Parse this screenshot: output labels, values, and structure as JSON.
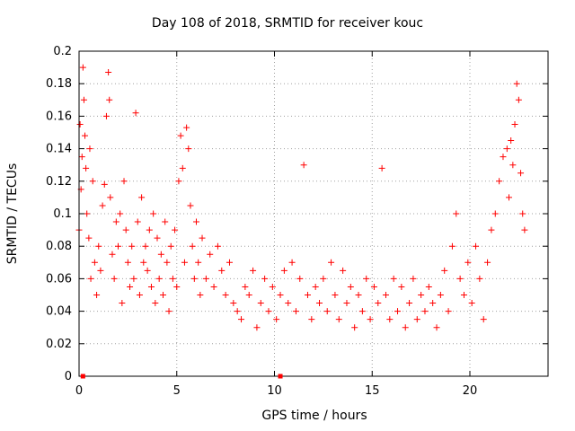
{
  "chart_data": {
    "type": "scatter",
    "title": "Day 108 of 2018, SRMTID for receiver kouc",
    "xlabel": "GPS time / hours",
    "ylabel": "SRMTID / TECUs",
    "xlim": [
      0,
      24
    ],
    "ylim": [
      0,
      0.2
    ],
    "xticks": [
      0,
      5,
      10,
      15,
      20
    ],
    "xtick_labels": [
      "0",
      "5",
      "10",
      "15",
      "20"
    ],
    "yticks": [
      0,
      0.02,
      0.04,
      0.06,
      0.08,
      0.1,
      0.12,
      0.14,
      0.16,
      0.18,
      0.2
    ],
    "ytick_labels": [
      "0",
      "0.02",
      "0.04",
      "0.06",
      "0.08",
      "0.1",
      "0.12",
      "0.14",
      "0.16",
      "0.18",
      "0.2"
    ],
    "grid": true,
    "marker": "plus",
    "color": "#ff0000",
    "series": [
      {
        "name": "SRMTID",
        "x": [
          0.0,
          0.05,
          0.1,
          0.15,
          0.2,
          0.25,
          0.3,
          0.35,
          0.4,
          0.5,
          0.55,
          0.6,
          0.7,
          0.8,
          0.9,
          1.0,
          1.1,
          1.2,
          1.3,
          1.4,
          1.5,
          1.55,
          1.6,
          1.7,
          1.8,
          1.9,
          2.0,
          2.1,
          2.2,
          2.3,
          2.4,
          2.5,
          2.6,
          2.7,
          2.8,
          2.9,
          3.0,
          3.1,
          3.2,
          3.3,
          3.4,
          3.5,
          3.6,
          3.7,
          3.8,
          3.9,
          4.0,
          4.1,
          4.2,
          4.3,
          4.4,
          4.5,
          4.6,
          4.7,
          4.8,
          4.9,
          5.0,
          5.1,
          5.2,
          5.3,
          5.4,
          5.5,
          5.6,
          5.7,
          5.8,
          5.9,
          6.0,
          6.1,
          6.2,
          6.3,
          6.5,
          6.7,
          6.9,
          7.1,
          7.3,
          7.5,
          7.7,
          7.9,
          8.1,
          8.3,
          8.5,
          8.7,
          8.9,
          9.1,
          9.3,
          9.5,
          9.7,
          9.9,
          10.1,
          10.3,
          10.5,
          10.7,
          10.9,
          11.1,
          11.3,
          11.5,
          11.7,
          11.9,
          12.1,
          12.3,
          12.5,
          12.7,
          12.9,
          13.1,
          13.3,
          13.5,
          13.7,
          13.9,
          14.1,
          14.3,
          14.5,
          14.7,
          14.9,
          15.1,
          15.3,
          15.5,
          15.7,
          15.9,
          16.1,
          16.3,
          16.5,
          16.7,
          16.9,
          17.1,
          17.3,
          17.5,
          17.7,
          17.9,
          18.1,
          18.3,
          18.5,
          18.7,
          18.9,
          19.1,
          19.3,
          19.5,
          19.7,
          19.9,
          20.1,
          20.3,
          20.5,
          20.7,
          20.9,
          21.1,
          21.3,
          21.5,
          21.7,
          21.9,
          22.0,
          22.1,
          22.2,
          22.3,
          22.4,
          22.5,
          22.6,
          22.7,
          22.8
        ],
        "y": [
          0.09,
          0.155,
          0.115,
          0.135,
          0.19,
          0.17,
          0.148,
          0.128,
          0.1,
          0.085,
          0.14,
          0.06,
          0.12,
          0.07,
          0.05,
          0.08,
          0.065,
          0.105,
          0.118,
          0.16,
          0.187,
          0.17,
          0.11,
          0.075,
          0.06,
          0.095,
          0.08,
          0.1,
          0.045,
          0.12,
          0.09,
          0.07,
          0.055,
          0.08,
          0.06,
          0.162,
          0.095,
          0.05,
          0.11,
          0.07,
          0.08,
          0.065,
          0.09,
          0.055,
          0.1,
          0.045,
          0.085,
          0.06,
          0.075,
          0.05,
          0.095,
          0.07,
          0.04,
          0.08,
          0.06,
          0.09,
          0.055,
          0.12,
          0.148,
          0.128,
          0.07,
          0.153,
          0.14,
          0.105,
          0.08,
          0.06,
          0.095,
          0.07,
          0.05,
          0.085,
          0.06,
          0.075,
          0.055,
          0.08,
          0.065,
          0.05,
          0.07,
          0.045,
          0.04,
          0.035,
          0.055,
          0.05,
          0.065,
          0.03,
          0.045,
          0.06,
          0.04,
          0.055,
          0.035,
          0.05,
          0.065,
          0.045,
          0.07,
          0.04,
          0.06,
          0.13,
          0.05,
          0.035,
          0.055,
          0.045,
          0.06,
          0.04,
          0.07,
          0.05,
          0.035,
          0.065,
          0.045,
          0.055,
          0.03,
          0.05,
          0.04,
          0.06,
          0.035,
          0.055,
          0.045,
          0.128,
          0.05,
          0.035,
          0.06,
          0.04,
          0.055,
          0.03,
          0.045,
          0.06,
          0.035,
          0.05,
          0.04,
          0.055,
          0.045,
          0.03,
          0.05,
          0.065,
          0.04,
          0.08,
          0.1,
          0.06,
          0.05,
          0.07,
          0.045,
          0.08,
          0.06,
          0.035,
          0.07,
          0.09,
          0.1,
          0.12,
          0.135,
          0.14,
          0.11,
          0.145,
          0.13,
          0.155,
          0.18,
          0.17,
          0.125,
          0.1,
          0.09
        ]
      }
    ]
  }
}
